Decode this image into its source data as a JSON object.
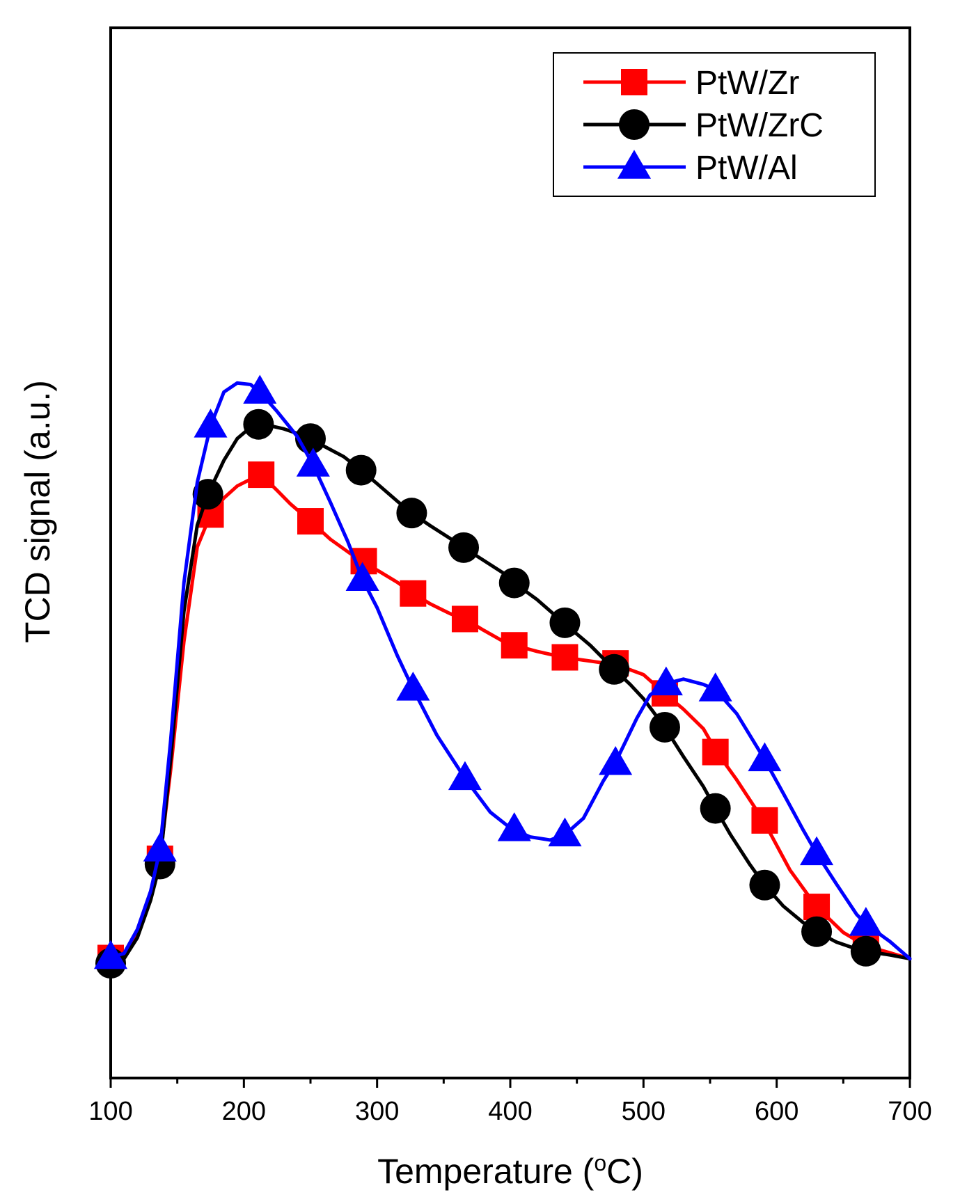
{
  "chart_data": {
    "type": "line",
    "title": "",
    "xlabel": "Temperature (",
    "xlabel_sup": "o",
    "xlabel_end": "C)",
    "ylabel": "TCD signal (a.u.)",
    "xlim": [
      100,
      700
    ],
    "ylim": [
      0,
      100
    ],
    "x_ticks": [
      100,
      200,
      300,
      400,
      500,
      600,
      700
    ],
    "x_tick_labels": [
      "100",
      "200",
      "300",
      "400",
      "500",
      "600",
      "700"
    ],
    "y_ticks_shown": false,
    "grid": false,
    "legend_position": "top-right",
    "series": [
      {
        "name": "PtW/Zr",
        "color": "#ff0000",
        "marker": "square",
        "x": [
          100,
          110,
          120,
          130,
          137,
          145,
          155,
          165,
          175,
          185,
          195,
          205,
          213,
          225,
          235,
          250,
          265,
          280,
          290,
          300,
          315,
          327,
          340,
          355,
          366,
          380,
          395,
          403,
          420,
          440,
          460,
          480,
          500,
          516,
          530,
          545,
          555,
          570,
          590,
          610,
          630,
          650,
          667,
          685,
          700
        ],
        "y": [
          3.1,
          3.5,
          6.2,
          11.4,
          16.3,
          28.1,
          45.2,
          57.8,
          62.1,
          64.3,
          65.9,
          66.8,
          67.4,
          65.3,
          63.5,
          61.2,
          58.8,
          56.9,
          55.9,
          54.7,
          53.1,
          51.6,
          50.2,
          48.9,
          48.2,
          46.7,
          45.2,
          44.7,
          43.9,
          43.1,
          42.6,
          42.1,
          40.8,
          38.3,
          36.2,
          33.6,
          30.5,
          26.8,
          21.4,
          14.8,
          9.9,
          6.5,
          4.7,
          3.8,
          3.0
        ],
        "marker_x": [
          100,
          137,
          175,
          213,
          250,
          290,
          327,
          366,
          403,
          441,
          479,
          516,
          554,
          591,
          630,
          667
        ],
        "marker_y": [
          3.1,
          16.3,
          62.1,
          67.4,
          61.2,
          55.9,
          51.6,
          48.2,
          44.7,
          43.1,
          42.3,
          38.3,
          30.5,
          21.4,
          9.9,
          4.7
        ]
      },
      {
        "name": "PtW/ZrC",
        "color": "#000000",
        "marker": "circle",
        "x": [
          100,
          110,
          120,
          130,
          137,
          145,
          155,
          165,
          173,
          185,
          195,
          205,
          211,
          220,
          230,
          240,
          250,
          260,
          275,
          288,
          300,
          315,
          326,
          340,
          355,
          365,
          380,
          395,
          403,
          420,
          440,
          460,
          478,
          490,
          500,
          516,
          530,
          545,
          554,
          565,
          580,
          591,
          605,
          620,
          630,
          645,
          660,
          667,
          685,
          700
        ],
        "y": [
          2.4,
          3.0,
          5.8,
          10.8,
          15.6,
          29.5,
          49.2,
          60.7,
          64.8,
          69.3,
          72.2,
          73.7,
          74.1,
          73.9,
          73.5,
          72.9,
          72.2,
          71.2,
          69.8,
          68.0,
          66.2,
          63.9,
          62.3,
          60.6,
          58.9,
          57.7,
          56.0,
          54.3,
          53.0,
          50.8,
          47.7,
          44.7,
          41.5,
          39.5,
          37.6,
          33.8,
          29.9,
          25.9,
          23.0,
          19.6,
          15.5,
          12.8,
          10.0,
          7.8,
          6.6,
          5.2,
          4.3,
          4.0,
          3.5,
          3.0
        ],
        "marker_x": [
          100,
          137,
          173,
          211,
          250,
          288,
          326,
          365,
          403,
          441,
          478,
          516,
          554,
          591,
          630,
          667
        ],
        "marker_y": [
          2.4,
          15.6,
          64.8,
          74.1,
          72.2,
          68.0,
          62.3,
          57.7,
          53.0,
          47.7,
          41.5,
          33.8,
          23.0,
          12.8,
          6.6,
          4.0
        ]
      },
      {
        "name": "PtW/Al",
        "color": "#0000ff",
        "marker": "triangle",
        "x": [
          100,
          110,
          120,
          130,
          137,
          145,
          155,
          165,
          175,
          185,
          195,
          205,
          212,
          225,
          240,
          252,
          265,
          278,
          289,
          300,
          315,
          327,
          345,
          366,
          385,
          400,
          415,
          430,
          441,
          455,
          470,
          480,
          495,
          505,
          517,
          530,
          545,
          554,
          570,
          591,
          605,
          620,
          630,
          645,
          660,
          667,
          685,
          700
        ],
        "y": [
          3.2,
          3.7,
          6.9,
          12.0,
          17.5,
          32.0,
          53.0,
          66.4,
          73.9,
          78.4,
          79.6,
          79.4,
          78.4,
          75.8,
          72.5,
          68.7,
          63.7,
          58.5,
          53.5,
          49.7,
          43.4,
          38.9,
          32.7,
          27.0,
          22.5,
          20.4,
          19.2,
          18.8,
          19.5,
          21.7,
          26.7,
          29.5,
          35.0,
          38.1,
          39.6,
          40.2,
          39.5,
          38.8,
          35.6,
          29.5,
          25.0,
          20.1,
          17.0,
          12.9,
          8.9,
          7.6,
          5.3,
          3.0
        ],
        "marker_x": [
          100,
          137,
          175,
          212,
          252,
          289,
          327,
          366,
          403,
          441,
          479,
          517,
          554,
          591,
          630,
          667
        ],
        "marker_y": [
          3.2,
          17.5,
          73.9,
          78.4,
          68.7,
          53.5,
          38.9,
          27.0,
          20.2,
          19.5,
          29.0,
          39.6,
          38.8,
          29.5,
          17.0,
          7.6
        ]
      }
    ]
  }
}
